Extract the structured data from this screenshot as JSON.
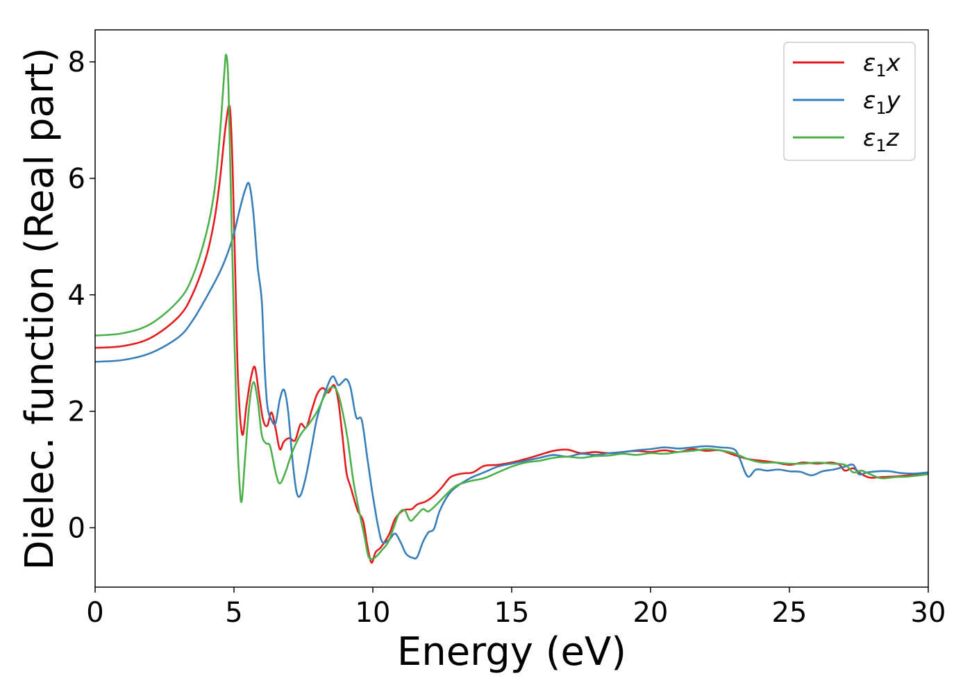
{
  "chart_data": {
    "type": "line",
    "title": "",
    "xlabel": "Energy (eV)",
    "ylabel": "Dielec. function (Real part)",
    "xlim": [
      0,
      30
    ],
    "ylim": [
      -1.02,
      8.55
    ],
    "xticks": [
      0,
      5,
      10,
      15,
      20,
      25,
      30
    ],
    "xtick_labels": [
      "0",
      "5",
      "10",
      "15",
      "20",
      "25",
      "30"
    ],
    "yticks": [
      0,
      2,
      4,
      6,
      8
    ],
    "ytick_labels": [
      "0",
      "2",
      "4",
      "6",
      "8"
    ],
    "grid": false,
    "legend_position": "top-right",
    "series": [
      {
        "name": "ε1x",
        "legend_main": "ε",
        "legend_sub": "1",
        "legend_var": "x",
        "color": "#e41a1c",
        "points": [
          [
            0,
            3.09
          ],
          [
            1,
            3.12
          ],
          [
            2,
            3.26
          ],
          [
            3,
            3.62
          ],
          [
            3.5,
            4.0
          ],
          [
            4,
            4.65
          ],
          [
            4.3,
            5.3
          ],
          [
            4.5,
            6.0
          ],
          [
            4.7,
            6.9
          ],
          [
            4.85,
            7.22
          ],
          [
            4.95,
            6.2
          ],
          [
            5.05,
            4.3
          ],
          [
            5.15,
            2.5
          ],
          [
            5.3,
            1.6
          ],
          [
            5.45,
            2.1
          ],
          [
            5.6,
            2.55
          ],
          [
            5.75,
            2.76
          ],
          [
            5.9,
            2.3
          ],
          [
            6.05,
            1.85
          ],
          [
            6.2,
            1.75
          ],
          [
            6.35,
            1.98
          ],
          [
            6.5,
            1.7
          ],
          [
            6.65,
            1.35
          ],
          [
            6.8,
            1.48
          ],
          [
            7.0,
            1.54
          ],
          [
            7.2,
            1.5
          ],
          [
            7.4,
            1.78
          ],
          [
            7.6,
            1.72
          ],
          [
            7.8,
            2.02
          ],
          [
            8.0,
            2.3
          ],
          [
            8.2,
            2.4
          ],
          [
            8.4,
            2.32
          ],
          [
            8.6,
            2.45
          ],
          [
            8.75,
            2.2
          ],
          [
            8.9,
            1.6
          ],
          [
            9.05,
            0.95
          ],
          [
            9.2,
            0.7
          ],
          [
            9.45,
            0.3
          ],
          [
            9.65,
            0.12
          ],
          [
            9.8,
            -0.3
          ],
          [
            9.95,
            -0.6
          ],
          [
            10.1,
            -0.42
          ],
          [
            10.3,
            -0.33
          ],
          [
            10.6,
            -0.1
          ],
          [
            10.8,
            0.15
          ],
          [
            11.1,
            0.3
          ],
          [
            11.4,
            0.32
          ],
          [
            11.6,
            0.4
          ],
          [
            11.9,
            0.45
          ],
          [
            12.2,
            0.55
          ],
          [
            12.5,
            0.7
          ],
          [
            12.8,
            0.87
          ],
          [
            13.2,
            0.93
          ],
          [
            13.6,
            0.95
          ],
          [
            14,
            1.06
          ],
          [
            14.5,
            1.08
          ],
          [
            15,
            1.12
          ],
          [
            15.5,
            1.18
          ],
          [
            16,
            1.25
          ],
          [
            16.5,
            1.32
          ],
          [
            17,
            1.34
          ],
          [
            17.5,
            1.28
          ],
          [
            18,
            1.3
          ],
          [
            18.5,
            1.28
          ],
          [
            19,
            1.3
          ],
          [
            19.5,
            1.32
          ],
          [
            20,
            1.3
          ],
          [
            20.5,
            1.33
          ],
          [
            21,
            1.3
          ],
          [
            21.5,
            1.35
          ],
          [
            22,
            1.32
          ],
          [
            22.5,
            1.33
          ],
          [
            23,
            1.25
          ],
          [
            23.5,
            1.18
          ],
          [
            24,
            1.15
          ],
          [
            24.5,
            1.12
          ],
          [
            25,
            1.08
          ],
          [
            25.5,
            1.12
          ],
          [
            26,
            1.1
          ],
          [
            26.5,
            1.12
          ],
          [
            26.8,
            1.08
          ],
          [
            27,
            0.98
          ],
          [
            27.3,
            1.02
          ],
          [
            27.6,
            0.92
          ],
          [
            27.9,
            0.86
          ],
          [
            28.3,
            0.87
          ],
          [
            28.8,
            0.88
          ],
          [
            29.3,
            0.9
          ],
          [
            30,
            0.93
          ]
        ]
      },
      {
        "name": "ε1y",
        "legend_main": "ε",
        "legend_sub": "1",
        "legend_var": "y",
        "color": "#377eb8",
        "points": [
          [
            0,
            2.85
          ],
          [
            1,
            2.88
          ],
          [
            2,
            3.0
          ],
          [
            3,
            3.27
          ],
          [
            3.5,
            3.55
          ],
          [
            4,
            3.95
          ],
          [
            4.5,
            4.4
          ],
          [
            4.8,
            4.75
          ],
          [
            5.0,
            5.05
          ],
          [
            5.2,
            5.45
          ],
          [
            5.4,
            5.8
          ],
          [
            5.55,
            5.9
          ],
          [
            5.7,
            5.4
          ],
          [
            5.85,
            4.5
          ],
          [
            6.0,
            3.9
          ],
          [
            6.1,
            2.8
          ],
          [
            6.2,
            2.1
          ],
          [
            6.35,
            1.85
          ],
          [
            6.5,
            1.8
          ],
          [
            6.65,
            2.2
          ],
          [
            6.8,
            2.37
          ],
          [
            6.95,
            2.0
          ],
          [
            7.1,
            1.2
          ],
          [
            7.25,
            0.62
          ],
          [
            7.4,
            0.56
          ],
          [
            7.6,
            0.9
          ],
          [
            7.8,
            1.4
          ],
          [
            8.0,
            1.9
          ],
          [
            8.3,
            2.35
          ],
          [
            8.55,
            2.6
          ],
          [
            8.75,
            2.45
          ],
          [
            8.9,
            2.5
          ],
          [
            9.05,
            2.55
          ],
          [
            9.2,
            2.4
          ],
          [
            9.4,
            1.9
          ],
          [
            9.6,
            1.85
          ],
          [
            9.8,
            1.2
          ],
          [
            10.0,
            0.55
          ],
          [
            10.2,
            0.0
          ],
          [
            10.35,
            -0.25
          ],
          [
            10.6,
            -0.2
          ],
          [
            10.8,
            -0.1
          ],
          [
            11.0,
            -0.25
          ],
          [
            11.2,
            -0.45
          ],
          [
            11.45,
            -0.52
          ],
          [
            11.6,
            -0.5
          ],
          [
            11.8,
            -0.25
          ],
          [
            12.0,
            -0.08
          ],
          [
            12.2,
            -0.02
          ],
          [
            12.4,
            0.28
          ],
          [
            12.7,
            0.55
          ],
          [
            13,
            0.7
          ],
          [
            13.5,
            0.85
          ],
          [
            14,
            0.95
          ],
          [
            14.5,
            1.05
          ],
          [
            15,
            1.1
          ],
          [
            15.5,
            1.15
          ],
          [
            16,
            1.2
          ],
          [
            16.5,
            1.25
          ],
          [
            17,
            1.22
          ],
          [
            17.5,
            1.27
          ],
          [
            18,
            1.25
          ],
          [
            18.5,
            1.28
          ],
          [
            19,
            1.3
          ],
          [
            19.5,
            1.33
          ],
          [
            20,
            1.35
          ],
          [
            20.5,
            1.38
          ],
          [
            21,
            1.36
          ],
          [
            21.5,
            1.38
          ],
          [
            22,
            1.4
          ],
          [
            22.5,
            1.38
          ],
          [
            23,
            1.35
          ],
          [
            23.2,
            1.2
          ],
          [
            23.5,
            0.88
          ],
          [
            23.8,
            1.0
          ],
          [
            24.2,
            0.98
          ],
          [
            24.6,
            1.0
          ],
          [
            25,
            0.97
          ],
          [
            25.4,
            0.96
          ],
          [
            25.8,
            0.9
          ],
          [
            26.2,
            0.97
          ],
          [
            26.6,
            1.0
          ],
          [
            27,
            1.05
          ],
          [
            27.3,
            1.08
          ],
          [
            27.5,
            0.92
          ],
          [
            27.8,
            0.95
          ],
          [
            28.2,
            0.97
          ],
          [
            28.6,
            0.97
          ],
          [
            29,
            0.94
          ],
          [
            29.5,
            0.93
          ],
          [
            30,
            0.95
          ]
        ]
      },
      {
        "name": "ε1z",
        "legend_main": "ε",
        "legend_sub": "1",
        "legend_var": "z",
        "color": "#4daf4a",
        "points": [
          [
            0,
            3.3
          ],
          [
            1,
            3.34
          ],
          [
            2,
            3.5
          ],
          [
            3,
            3.9
          ],
          [
            3.5,
            4.3
          ],
          [
            4,
            5.05
          ],
          [
            4.3,
            5.8
          ],
          [
            4.5,
            6.8
          ],
          [
            4.65,
            7.8
          ],
          [
            4.72,
            8.12
          ],
          [
            4.8,
            7.6
          ],
          [
            4.9,
            5.5
          ],
          [
            5.0,
            3.5
          ],
          [
            5.1,
            1.8
          ],
          [
            5.2,
            0.75
          ],
          [
            5.28,
            0.46
          ],
          [
            5.4,
            1.2
          ],
          [
            5.55,
            2.1
          ],
          [
            5.7,
            2.5
          ],
          [
            5.85,
            2.2
          ],
          [
            6.0,
            1.6
          ],
          [
            6.15,
            1.45
          ],
          [
            6.3,
            1.4
          ],
          [
            6.5,
            0.95
          ],
          [
            6.65,
            0.76
          ],
          [
            6.85,
            0.95
          ],
          [
            7.1,
            1.3
          ],
          [
            7.4,
            1.6
          ],
          [
            7.7,
            1.78
          ],
          [
            8.0,
            2.0
          ],
          [
            8.3,
            2.3
          ],
          [
            8.55,
            2.42
          ],
          [
            8.75,
            2.3
          ],
          [
            8.95,
            1.9
          ],
          [
            9.1,
            1.5
          ],
          [
            9.3,
            0.8
          ],
          [
            9.5,
            0.3
          ],
          [
            9.7,
            -0.15
          ],
          [
            9.85,
            -0.5
          ],
          [
            10.05,
            -0.52
          ],
          [
            10.3,
            -0.4
          ],
          [
            10.55,
            -0.25
          ],
          [
            10.75,
            0.0
          ],
          [
            10.95,
            0.25
          ],
          [
            11.15,
            0.3
          ],
          [
            11.35,
            0.12
          ],
          [
            11.55,
            0.2
          ],
          [
            11.8,
            0.32
          ],
          [
            12.0,
            0.28
          ],
          [
            12.3,
            0.4
          ],
          [
            12.6,
            0.55
          ],
          [
            13,
            0.72
          ],
          [
            13.5,
            0.8
          ],
          [
            14,
            0.85
          ],
          [
            14.5,
            0.95
          ],
          [
            15,
            1.05
          ],
          [
            15.5,
            1.12
          ],
          [
            16,
            1.15
          ],
          [
            16.5,
            1.2
          ],
          [
            17,
            1.22
          ],
          [
            17.5,
            1.2
          ],
          [
            18,
            1.23
          ],
          [
            18.5,
            1.24
          ],
          [
            19,
            1.27
          ],
          [
            19.5,
            1.25
          ],
          [
            20,
            1.28
          ],
          [
            20.5,
            1.27
          ],
          [
            21,
            1.3
          ],
          [
            21.5,
            1.32
          ],
          [
            22,
            1.35
          ],
          [
            22.5,
            1.33
          ],
          [
            23,
            1.28
          ],
          [
            23.5,
            1.18
          ],
          [
            24,
            1.12
          ],
          [
            24.5,
            1.12
          ],
          [
            25,
            1.1
          ],
          [
            25.5,
            1.1
          ],
          [
            26,
            1.12
          ],
          [
            26.5,
            1.1
          ],
          [
            27,
            1.08
          ],
          [
            27.3,
            0.95
          ],
          [
            27.6,
            0.98
          ],
          [
            27.9,
            0.92
          ],
          [
            28.3,
            0.85
          ],
          [
            28.8,
            0.87
          ],
          [
            29.3,
            0.88
          ],
          [
            30,
            0.92
          ]
        ]
      }
    ]
  }
}
